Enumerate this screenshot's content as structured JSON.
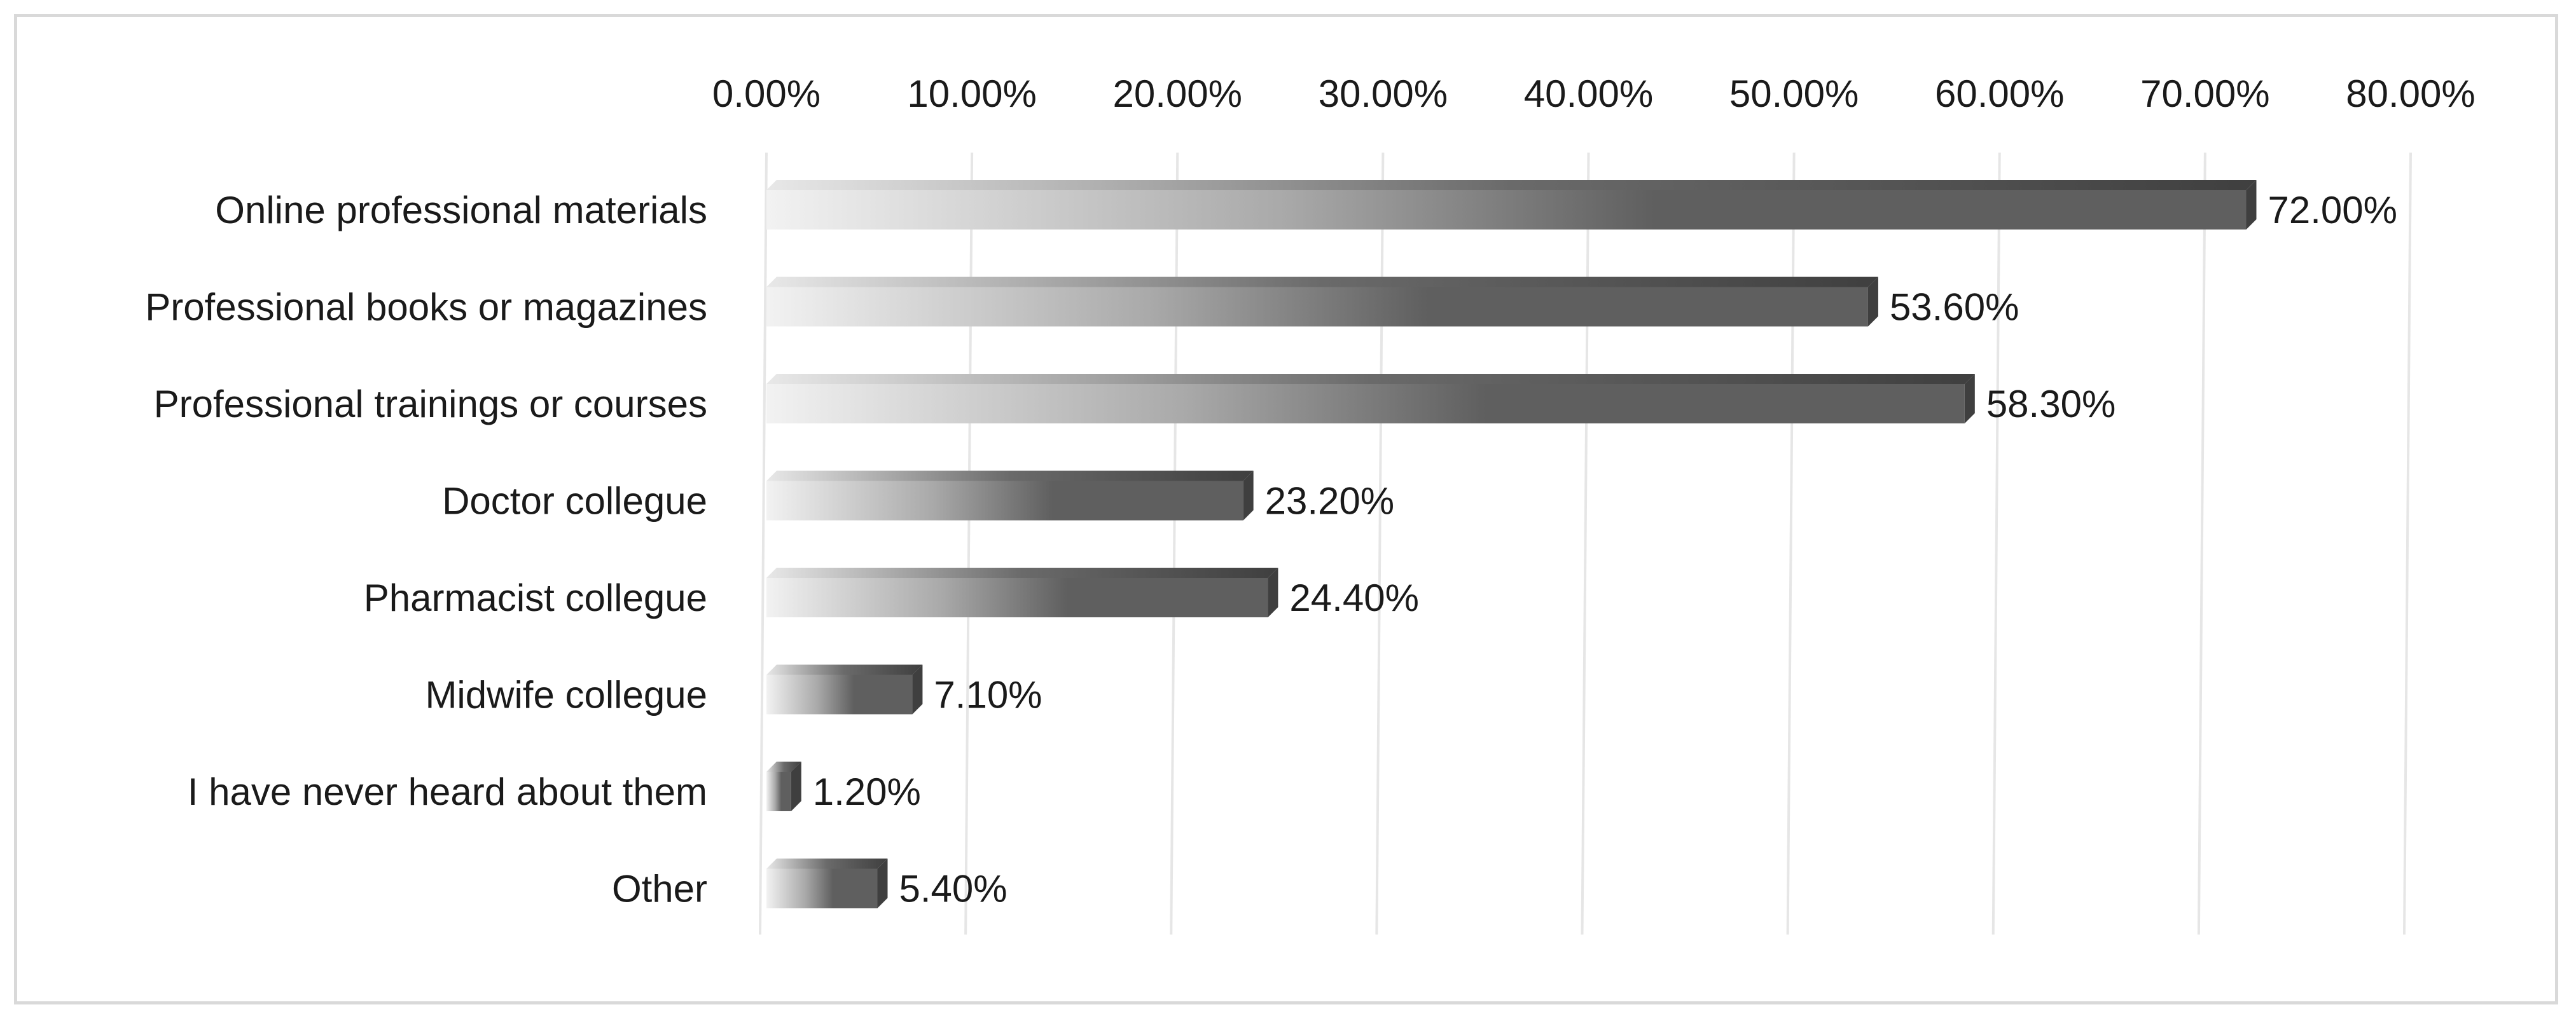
{
  "chart_data": {
    "type": "bar",
    "orientation": "horizontal",
    "style": "3d-gradient",
    "categories": [
      "Online professional materials",
      "Professional books or magazines",
      "Professional trainings or courses",
      "Doctor collegue",
      "Pharmacist collegue",
      "Midwife collegue",
      "I have never heard about them",
      "Other"
    ],
    "values": [
      72.0,
      53.6,
      58.3,
      23.2,
      24.4,
      7.1,
      1.2,
      5.4
    ],
    "data_labels": [
      "72.00%",
      "53.60%",
      "58.30%",
      "23.20%",
      "24.40%",
      "7.10%",
      "1.20%",
      "5.40%"
    ],
    "x_ticks": [
      0,
      10,
      20,
      30,
      40,
      50,
      60,
      70,
      80
    ],
    "x_tick_labels": [
      "0.00%",
      "10.00%",
      "20.00%",
      "30.00%",
      "40.00%",
      "50.00%",
      "60.00%",
      "70.00%",
      "80.00%"
    ],
    "xlim": [
      0,
      80
    ],
    "axis_position": "top",
    "grid": true,
    "legend": "none",
    "colors": {
      "bar_dark": "#5f5f5f",
      "bar_light": "#f2f2f2",
      "bar_top": "#3f3f3f",
      "gridline": "#e6e6e6"
    }
  }
}
